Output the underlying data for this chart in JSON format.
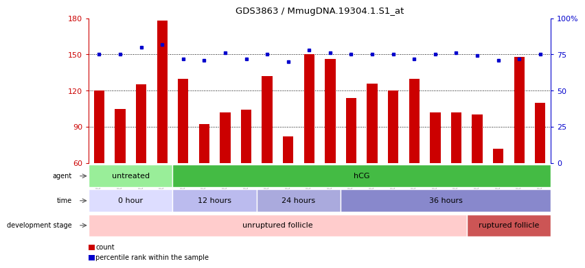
{
  "title": "GDS3863 / MmugDNA.19304.1.S1_at",
  "samples": [
    "GSM563219",
    "GSM563220",
    "GSM563221",
    "GSM563222",
    "GSM563223",
    "GSM563224",
    "GSM563225",
    "GSM563226",
    "GSM563227",
    "GSM563228",
    "GSM563229",
    "GSM563230",
    "GSM563231",
    "GSM563232",
    "GSM563233",
    "GSM563234",
    "GSM563235",
    "GSM563236",
    "GSM563237",
    "GSM563238",
    "GSM563239",
    "GSM563240"
  ],
  "counts": [
    120,
    105,
    125,
    178,
    130,
    92,
    102,
    104,
    132,
    82,
    150,
    146,
    114,
    126,
    120,
    130,
    102,
    102,
    100,
    72,
    148,
    110
  ],
  "percentiles": [
    75,
    75,
    80,
    82,
    72,
    71,
    76,
    72,
    75,
    70,
    78,
    76,
    75,
    75,
    75,
    72,
    75,
    76,
    74,
    71,
    72,
    75
  ],
  "ylim_left": [
    60,
    180
  ],
  "ylim_right": [
    0,
    100
  ],
  "yticks_left": [
    60,
    90,
    120,
    150,
    180
  ],
  "yticks_right": [
    0,
    25,
    50,
    75,
    100
  ],
  "bar_color": "#cc0000",
  "dot_color": "#0000cc",
  "agent_untreated": {
    "label": "untreated",
    "start": 0,
    "end": 4,
    "color": "#99ee99"
  },
  "agent_hcg": {
    "label": "hCG",
    "start": 4,
    "end": 22,
    "color": "#44bb44"
  },
  "time_0h": {
    "label": "0 hour",
    "start": 0,
    "end": 4,
    "color": "#ddddff"
  },
  "time_12h": {
    "label": "12 hours",
    "start": 4,
    "end": 8,
    "color": "#bbbbee"
  },
  "time_24h": {
    "label": "24 hours",
    "start": 8,
    "end": 12,
    "color": "#aaaadd"
  },
  "time_36h": {
    "label": "36 hours",
    "start": 12,
    "end": 22,
    "color": "#8888cc"
  },
  "dev_unruptured": {
    "label": "unruptured follicle",
    "start": 0,
    "end": 18,
    "color": "#ffcccc"
  },
  "dev_ruptured": {
    "label": "ruptured follicle",
    "start": 18,
    "end": 22,
    "color": "#cc5555"
  },
  "legend_count": "count",
  "legend_percentile": "percentile rank within the sample",
  "bg_color": "#ffffff"
}
